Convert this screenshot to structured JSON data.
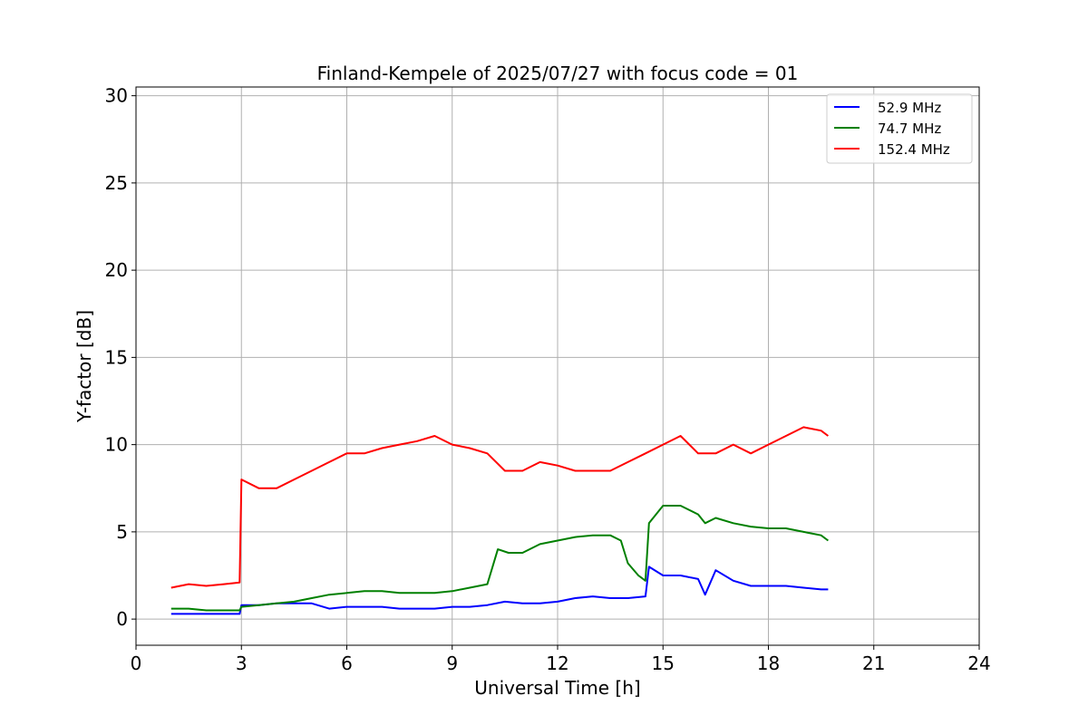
{
  "chart_data": {
    "type": "line",
    "title": "Finland-Kempele of 2025/07/27 with focus code = 01",
    "xlabel": "Universal Time [h]",
    "ylabel": "Y-factor [dB]",
    "xlim": [
      0,
      24
    ],
    "ylim": [
      -1.5,
      30.5
    ],
    "xticks": [
      0,
      3,
      6,
      9,
      12,
      15,
      18,
      21,
      24
    ],
    "yticks": [
      0,
      5,
      10,
      15,
      20,
      25,
      30
    ],
    "grid": true,
    "legend_position": "top-right",
    "series": [
      {
        "name": "  52.9 MHz",
        "color": "#0000ff",
        "x": [
          1.0,
          1.5,
          2.0,
          2.5,
          2.95,
          3.0,
          3.5,
          4.0,
          4.5,
          5.0,
          5.5,
          6.0,
          6.5,
          7.0,
          7.5,
          8.0,
          8.5,
          9.0,
          9.5,
          10.0,
          10.5,
          11.0,
          11.5,
          12.0,
          12.5,
          13.0,
          13.5,
          14.0,
          14.5,
          14.6,
          15.0,
          15.5,
          16.0,
          16.2,
          16.5,
          17.0,
          17.5,
          18.0,
          18.5,
          19.0,
          19.5,
          19.7
        ],
        "y": [
          0.3,
          0.3,
          0.3,
          0.3,
          0.3,
          0.8,
          0.8,
          0.9,
          0.9,
          0.9,
          0.6,
          0.7,
          0.7,
          0.7,
          0.6,
          0.6,
          0.6,
          0.7,
          0.7,
          0.8,
          1.0,
          0.9,
          0.9,
          1.0,
          1.2,
          1.3,
          1.2,
          1.2,
          1.3,
          3.0,
          2.5,
          2.5,
          2.3,
          1.4,
          2.8,
          2.2,
          1.9,
          1.9,
          1.9,
          1.8,
          1.7,
          1.7
        ]
      },
      {
        "name": "  74.7 MHz",
        "color": "#008000",
        "x": [
          1.0,
          1.5,
          2.0,
          2.5,
          2.95,
          3.0,
          3.5,
          4.0,
          4.5,
          5.0,
          5.5,
          6.0,
          6.5,
          7.0,
          7.5,
          8.0,
          8.5,
          9.0,
          9.5,
          10.0,
          10.3,
          10.6,
          11.0,
          11.5,
          12.0,
          12.5,
          13.0,
          13.5,
          13.8,
          14.0,
          14.3,
          14.5,
          14.6,
          15.0,
          15.5,
          16.0,
          16.2,
          16.5,
          17.0,
          17.5,
          18.0,
          18.5,
          19.0,
          19.5,
          19.7
        ],
        "y": [
          0.6,
          0.6,
          0.5,
          0.5,
          0.5,
          0.7,
          0.8,
          0.9,
          1.0,
          1.2,
          1.4,
          1.5,
          1.6,
          1.6,
          1.5,
          1.5,
          1.5,
          1.6,
          1.8,
          2.0,
          4.0,
          3.8,
          3.8,
          4.3,
          4.5,
          4.7,
          4.8,
          4.8,
          4.5,
          3.2,
          2.5,
          2.2,
          5.5,
          6.5,
          6.5,
          6.0,
          5.5,
          5.8,
          5.5,
          5.3,
          5.2,
          5.2,
          5.0,
          4.8,
          4.5
        ]
      },
      {
        "name": " 152.4 MHz",
        "color": "#ff0000",
        "x": [
          1.0,
          1.5,
          2.0,
          2.5,
          2.95,
          3.0,
          3.5,
          4.0,
          4.5,
          5.0,
          5.5,
          6.0,
          6.5,
          7.0,
          7.5,
          8.0,
          8.5,
          9.0,
          9.5,
          10.0,
          10.5,
          11.0,
          11.5,
          12.0,
          12.5,
          13.0,
          13.5,
          14.0,
          14.5,
          15.0,
          15.5,
          16.0,
          16.5,
          17.0,
          17.5,
          18.0,
          18.5,
          19.0,
          19.5,
          19.7
        ],
        "y": [
          1.8,
          2.0,
          1.9,
          2.0,
          2.1,
          8.0,
          7.5,
          7.5,
          8.0,
          8.5,
          9.0,
          9.5,
          9.5,
          9.8,
          10.0,
          10.2,
          10.5,
          10.0,
          9.8,
          9.5,
          8.5,
          8.5,
          9.0,
          8.8,
          8.5,
          8.5,
          8.5,
          9.0,
          9.5,
          10.0,
          10.5,
          9.5,
          9.5,
          10.0,
          9.5,
          10.0,
          10.5,
          11.0,
          10.8,
          10.5
        ]
      }
    ]
  }
}
